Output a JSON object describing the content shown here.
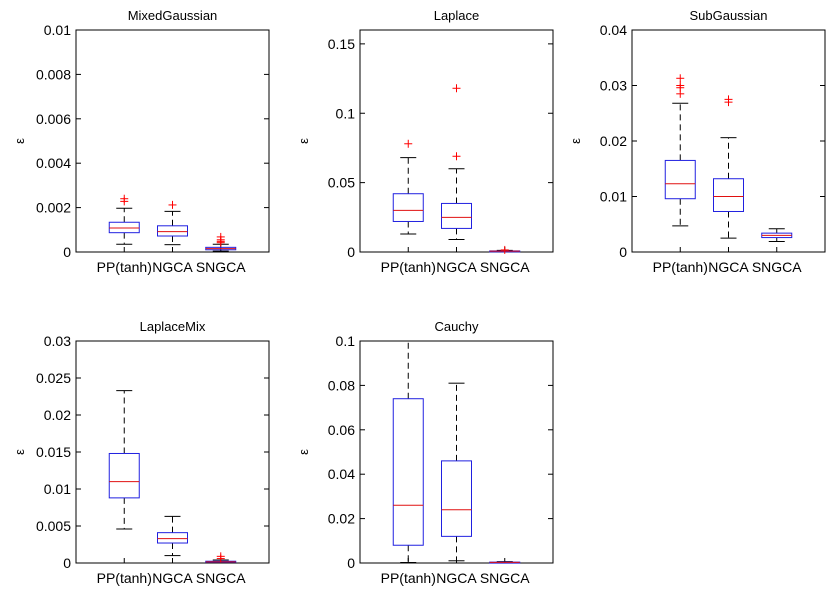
{
  "colors": {
    "box": "#2020e0",
    "median": "#e01010",
    "whisker": "#000000",
    "outlier": "#ff0000",
    "axis": "#000000",
    "background": "#ffffff"
  },
  "chart_data": [
    {
      "type": "boxplot",
      "title": "MixedGaussian",
      "ylabel": "ε",
      "categories": [
        "PP(tanh)",
        "NGCA",
        "SNGCA"
      ],
      "ylim": [
        0,
        0.01
      ],
      "yticks": [
        0,
        0.002,
        0.004,
        0.006,
        0.008,
        0.01
      ],
      "ytick_labels": [
        "0",
        "0.002",
        "0.004",
        "0.006",
        "0.008",
        "0.01"
      ],
      "boxes": [
        {
          "whisker_low": 0.00035,
          "q1": 0.00087,
          "median": 0.00108,
          "q3": 0.00134,
          "whisker_high": 0.00197,
          "outliers": [
            0.00228,
            0.0024
          ]
        },
        {
          "whisker_low": 0.00033,
          "q1": 0.00072,
          "median": 0.00092,
          "q3": 0.00118,
          "whisker_high": 0.00183,
          "outliers": [
            0.00212
          ]
        },
        {
          "whisker_low": 4e-05,
          "q1": 0.0001,
          "median": 0.00015,
          "q3": 0.00021,
          "whisker_high": 0.00035,
          "outliers": [
            0.00042,
            0.00048,
            0.00055,
            0.00068
          ]
        }
      ]
    },
    {
      "type": "boxplot",
      "title": "Laplace",
      "ylabel": "ε",
      "categories": [
        "PP(tanh)",
        "NGCA",
        "SNGCA"
      ],
      "ylim": [
        0,
        0.16
      ],
      "yticks": [
        0,
        0.05,
        0.1,
        0.15
      ],
      "ytick_labels": [
        "0",
        "0.05",
        "0.1",
        "0.15"
      ],
      "boxes": [
        {
          "whisker_low": 0.013,
          "q1": 0.022,
          "median": 0.03,
          "q3": 0.042,
          "whisker_high": 0.068,
          "outliers": [
            0.078
          ]
        },
        {
          "whisker_low": 0.009,
          "q1": 0.017,
          "median": 0.025,
          "q3": 0.035,
          "whisker_high": 0.06,
          "outliers": [
            0.069,
            0.118
          ]
        },
        {
          "whisker_low": 0.0002,
          "q1": 0.0004,
          "median": 0.0006,
          "q3": 0.0008,
          "whisker_high": 0.0012,
          "outliers": [
            0.0015
          ]
        }
      ]
    },
    {
      "type": "boxplot",
      "title": "SubGaussian",
      "ylabel": "ε",
      "categories": [
        "PP(tanh)",
        "NGCA",
        "SNGCA"
      ],
      "ylim": [
        0,
        0.04
      ],
      "yticks": [
        0,
        0.01,
        0.02,
        0.03,
        0.04
      ],
      "ytick_labels": [
        "0",
        "0.01",
        "0.02",
        "0.03",
        "0.04"
      ],
      "boxes": [
        {
          "whisker_low": 0.0047,
          "q1": 0.0096,
          "median": 0.0123,
          "q3": 0.0165,
          "whisker_high": 0.0268,
          "outliers": [
            0.0285,
            0.0296,
            0.03,
            0.0313
          ]
        },
        {
          "whisker_low": 0.0025,
          "q1": 0.0073,
          "median": 0.01,
          "q3": 0.0132,
          "whisker_high": 0.0206,
          "outliers": [
            0.027,
            0.0275
          ]
        },
        {
          "whisker_low": 0.0019,
          "q1": 0.0026,
          "median": 0.003,
          "q3": 0.0034,
          "whisker_high": 0.0042,
          "outliers": []
        }
      ]
    },
    {
      "type": "boxplot",
      "title": "LaplaceMix",
      "ylabel": "ε",
      "categories": [
        "PP(tanh)",
        "NGCA",
        "SNGCA"
      ],
      "ylim": [
        0,
        0.03
      ],
      "yticks": [
        0,
        0.005,
        0.01,
        0.015,
        0.02,
        0.025,
        0.03
      ],
      "ytick_labels": [
        "0",
        "0.005",
        "0.01",
        "0.015",
        "0.02",
        "0.025",
        "0.03"
      ],
      "boxes": [
        {
          "whisker_low": 0.0046,
          "q1": 0.0088,
          "median": 0.011,
          "q3": 0.0148,
          "whisker_high": 0.0233,
          "outliers": []
        },
        {
          "whisker_low": 0.001,
          "q1": 0.0027,
          "median": 0.0033,
          "q3": 0.0041,
          "whisker_high": 0.0063,
          "outliers": []
        },
        {
          "whisker_low": 2e-05,
          "q1": 0.0001,
          "median": 0.00016,
          "q3": 0.00024,
          "whisker_high": 0.0004,
          "outliers": [
            0.0006,
            0.0009
          ]
        }
      ]
    },
    {
      "type": "boxplot",
      "title": "Cauchy",
      "ylabel": "ε",
      "categories": [
        "PP(tanh)",
        "NGCA",
        "SNGCA"
      ],
      "ylim": [
        0,
        0.1
      ],
      "yticks": [
        0,
        0.02,
        0.04,
        0.06,
        0.08,
        0.1
      ],
      "ytick_labels": [
        "0",
        "0.02",
        "0.04",
        "0.06",
        "0.08",
        "0.1"
      ],
      "boxes": [
        {
          "whisker_low": 0.0002,
          "q1": 0.008,
          "median": 0.026,
          "q3": 0.074,
          "whisker_high": 0.1,
          "outliers": []
        },
        {
          "whisker_low": 0.001,
          "q1": 0.012,
          "median": 0.024,
          "q3": 0.046,
          "whisker_high": 0.081,
          "outliers": []
        },
        {
          "whisker_low": 0.0001,
          "q1": 0.0002,
          "median": 0.0003,
          "q3": 0.0004,
          "whisker_high": 0.0006,
          "outliers": []
        }
      ]
    }
  ]
}
